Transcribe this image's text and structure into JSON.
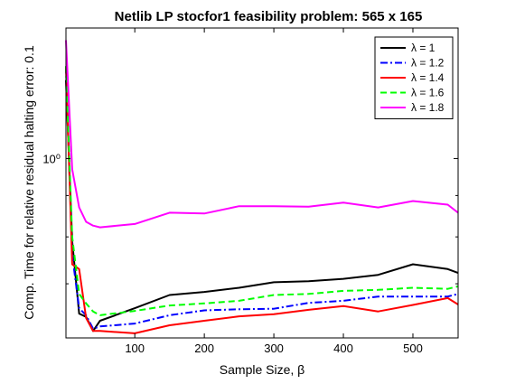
{
  "chart_data": {
    "type": "line",
    "title": "Netlib LP stocfor1 feasibility problem: 565 x 165",
    "xlabel": "Sample Size, β",
    "ylabel": "Comp. Time for relative residual halting error: 0.1",
    "xlim": [
      1,
      565
    ],
    "ylim": [
      0.6,
      1.45
    ],
    "yscale": "log",
    "xticks": [
      100,
      200,
      300,
      400,
      500
    ],
    "yticks": [
      {
        "value": 1,
        "label": "10⁰"
      }
    ],
    "grid": false,
    "legend_position": "top-right",
    "series": [
      {
        "name": "λ = 1",
        "color": "#000000",
        "dash": "solid",
        "x": [
          1,
          10,
          20,
          30,
          40,
          50,
          100,
          150,
          200,
          250,
          300,
          350,
          400,
          450,
          500,
          550,
          565
        ],
        "y": [
          1.25,
          0.79,
          0.643,
          0.637,
          0.612,
          0.63,
          0.653,
          0.678,
          0.684,
          0.692,
          0.703,
          0.705,
          0.71,
          0.718,
          0.74,
          0.73,
          0.722
        ]
      },
      {
        "name": "λ = 1.2",
        "color": "#0000ff",
        "dash": "dashdot",
        "x": [
          1,
          10,
          20,
          30,
          40,
          50,
          100,
          150,
          200,
          250,
          300,
          350,
          400,
          450,
          500,
          550,
          565
        ],
        "y": [
          1.3,
          0.76,
          0.653,
          0.64,
          0.616,
          0.62,
          0.625,
          0.64,
          0.649,
          0.651,
          0.652,
          0.663,
          0.667,
          0.675,
          0.675,
          0.675,
          0.68
        ]
      },
      {
        "name": "λ = 1.4",
        "color": "#ff0000",
        "dash": "solid",
        "x": [
          1,
          10,
          20,
          30,
          40,
          50,
          100,
          150,
          200,
          250,
          300,
          350,
          400,
          450,
          500,
          550,
          565
        ],
        "y": [
          1.3,
          0.74,
          0.73,
          0.635,
          0.612,
          0.612,
          0.608,
          0.622,
          0.63,
          0.638,
          0.642,
          0.65,
          0.657,
          0.647,
          0.659,
          0.672,
          0.66
        ]
      },
      {
        "name": "λ = 1.6",
        "color": "#00ff00",
        "dash": "dashed",
        "x": [
          1,
          10,
          20,
          30,
          40,
          50,
          100,
          150,
          200,
          250,
          300,
          350,
          400,
          450,
          500,
          550,
          565
        ],
        "y": [
          1.3,
          0.8,
          0.68,
          0.662,
          0.647,
          0.64,
          0.648,
          0.658,
          0.662,
          0.667,
          0.678,
          0.68,
          0.686,
          0.688,
          0.692,
          0.69,
          0.695
        ]
      },
      {
        "name": "λ = 1.8",
        "color": "#ff00ff",
        "dash": "solid",
        "x": [
          1,
          10,
          20,
          30,
          40,
          50,
          100,
          150,
          200,
          250,
          300,
          350,
          400,
          450,
          500,
          550,
          565
        ],
        "y": [
          1.4,
          0.97,
          0.87,
          0.835,
          0.826,
          0.822,
          0.83,
          0.857,
          0.855,
          0.873,
          0.873,
          0.872,
          0.882,
          0.87,
          0.886,
          0.877,
          0.857
        ]
      }
    ]
  }
}
